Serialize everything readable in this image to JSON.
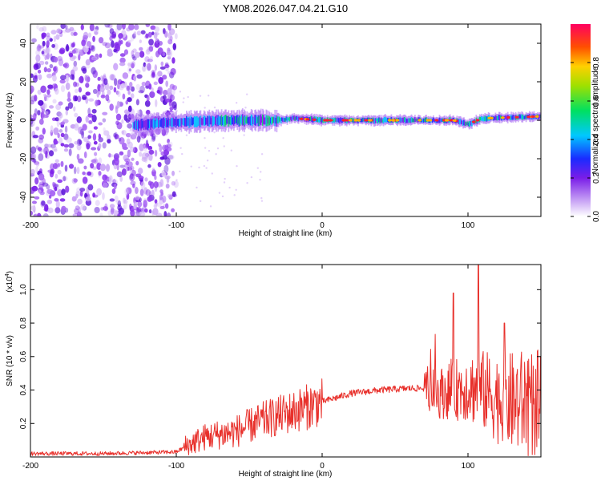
{
  "title": "YM08.2026.047.04.21.G10",
  "chart_data": [
    {
      "type": "heatmap",
      "name": "spectrogram",
      "xlabel": "Height of straight line (km)",
      "ylabel": "Frequency (Hz)",
      "xlim": [
        -200,
        150
      ],
      "ylim": [
        -50,
        50
      ],
      "xticks": [
        -200,
        -100,
        0,
        100
      ],
      "yticks": [
        -40,
        -20,
        0,
        20,
        40
      ],
      "noise_region": [
        -200,
        -100
      ],
      "ridge": [
        {
          "x": -150,
          "f": -3
        },
        {
          "x": -120,
          "f": -2
        },
        {
          "x": -100,
          "f": -1
        },
        {
          "x": -60,
          "f": 0
        },
        {
          "x": -30,
          "f": 0
        },
        {
          "x": -20,
          "f": 1
        },
        {
          "x": 0,
          "f": 0
        },
        {
          "x": 50,
          "f": 0
        },
        {
          "x": 90,
          "f": 0
        },
        {
          "x": 100,
          "f": -2
        },
        {
          "x": 110,
          "f": 1
        },
        {
          "x": 150,
          "f": 2
        }
      ],
      "colorbar": {
        "label": "Normalized spectral amplitude",
        "range": [
          0,
          1
        ],
        "ticks": [
          0,
          0.2,
          0.4,
          0.6,
          0.8
        ]
      }
    },
    {
      "type": "line",
      "name": "snr",
      "xlabel": "Height of straight line (km)",
      "ylabel": "SNR (10 * v/v)",
      "y_multiplier": "(x10",
      "y_multiplier_exp": "4",
      "y_multiplier_close": ")",
      "xlim": [
        -200,
        150
      ],
      "ylim": [
        0,
        1.15
      ],
      "xticks": [
        -200,
        -100,
        0,
        100
      ],
      "yticks": [
        0.2,
        0.4,
        0.6,
        0.8,
        1.0
      ],
      "series": [
        {
          "name": "SNR",
          "color": "#e8302b",
          "x": [
            -200,
            -150,
            -100,
            -90,
            -80,
            -60,
            -40,
            -20,
            0,
            20,
            40,
            60,
            70,
            80,
            90,
            100,
            110,
            120,
            130,
            140,
            150
          ],
          "y": [
            0.02,
            0.02,
            0.03,
            0.08,
            0.12,
            0.15,
            0.22,
            0.27,
            0.33,
            0.38,
            0.4,
            0.41,
            0.41,
            0.38,
            0.4,
            0.42,
            0.4,
            0.35,
            0.33,
            0.32,
            0.3
          ],
          "peaks": [
            {
              "x": 90,
              "y": 0.98
            },
            {
              "x": 107,
              "y": 1.15
            },
            {
              "x": 125,
              "y": 0.8
            },
            {
              "x": 150,
              "y": 0.6
            }
          ]
        }
      ]
    }
  ]
}
